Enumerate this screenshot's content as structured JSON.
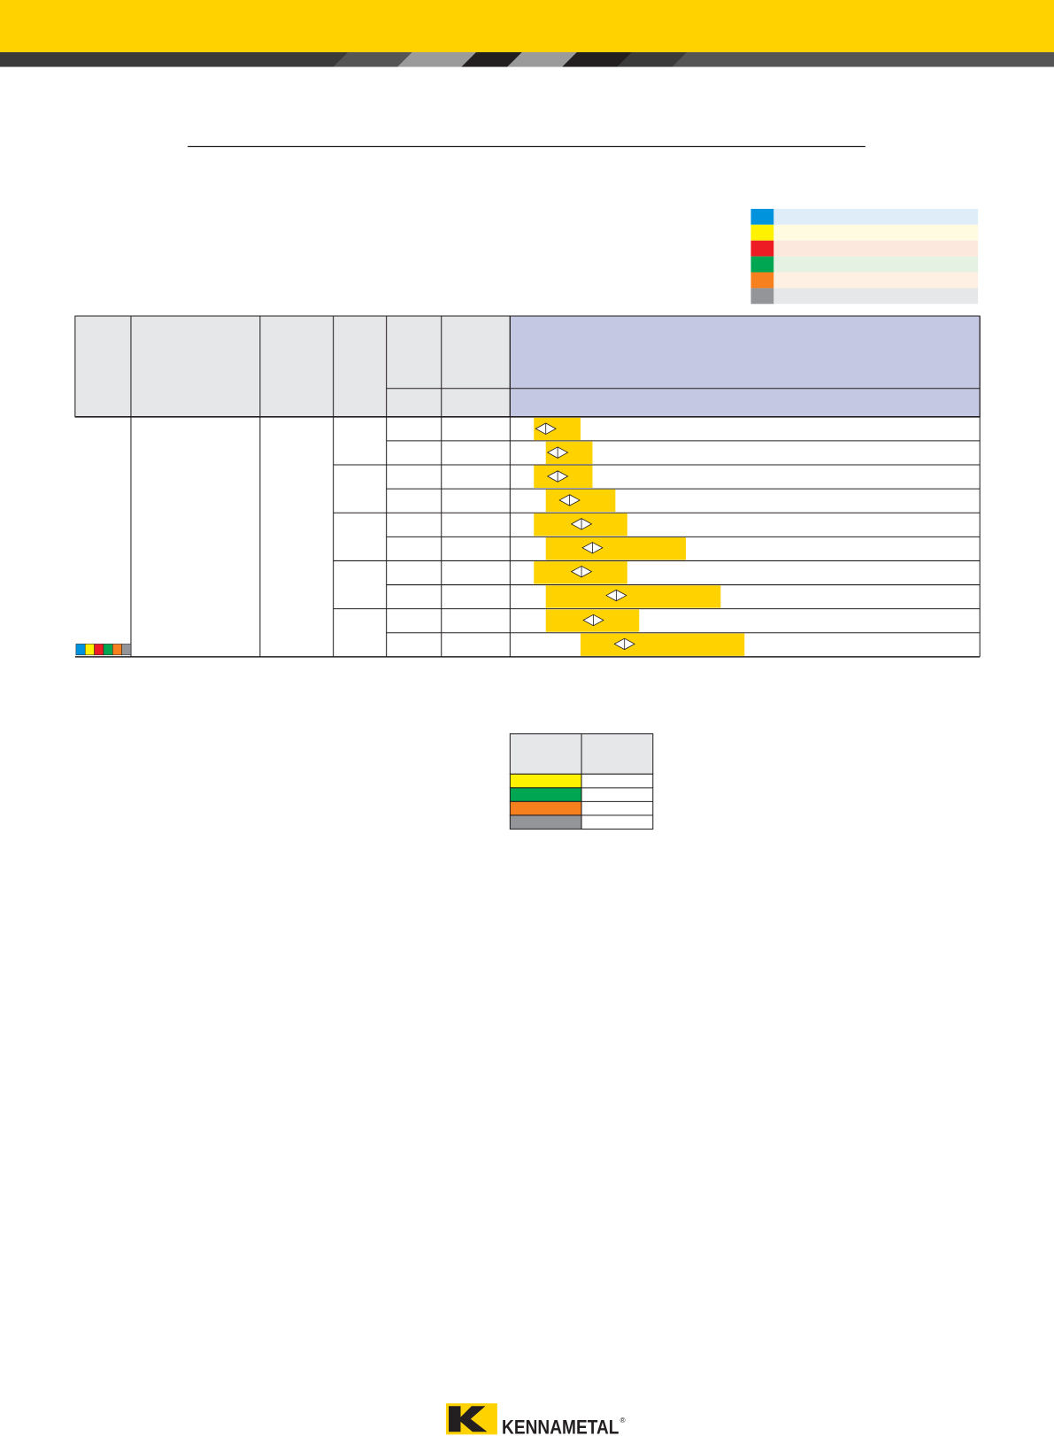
{
  "footer": {
    "logo_text": "KENNAMETAL",
    "registered_mark": "®"
  }
}
